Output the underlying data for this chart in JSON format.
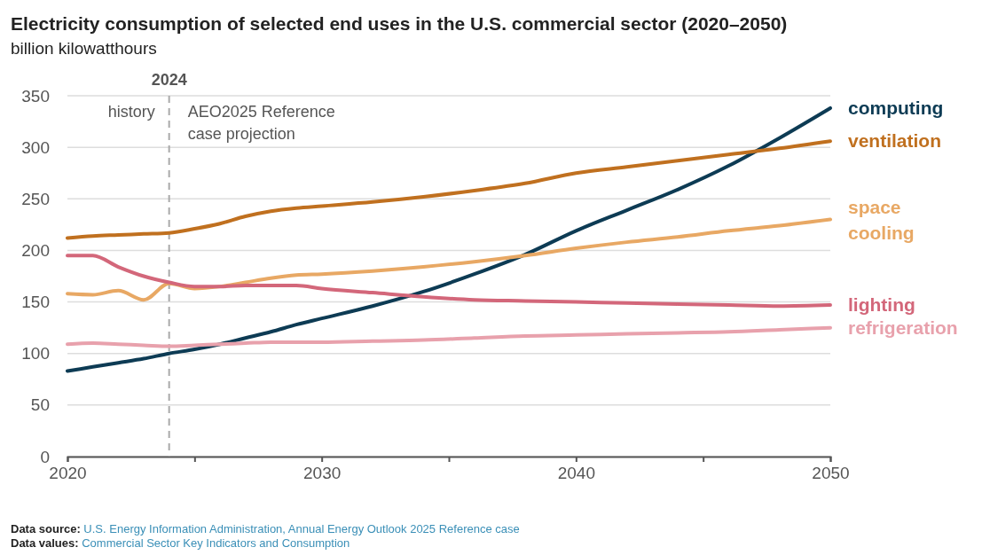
{
  "chart_data": {
    "type": "line",
    "title": "Electricity consumption of selected end uses in the U.S. commercial sector (2020–2050)",
    "subtitle": "billion kilowatthours",
    "x": [
      2020,
      2021,
      2022,
      2023,
      2024,
      2025,
      2026,
      2027,
      2028,
      2029,
      2030,
      2032,
      2034,
      2036,
      2038,
      2040,
      2042,
      2044,
      2046,
      2048,
      2050
    ],
    "series": [
      {
        "name": "computing",
        "color": "#0d3b54",
        "values": [
          83,
          87,
          91,
          95,
          100,
          104,
          109,
          115,
          121,
          128,
          134,
          146,
          160,
          177,
          196,
          219,
          239,
          259,
          282,
          309,
          338
        ]
      },
      {
        "name": "ventilation",
        "color": "#c0701f",
        "values": [
          212,
          214,
          215,
          216,
          217,
          221,
          226,
          233,
          238,
          241,
          243,
          247,
          252,
          258,
          265,
          275,
          281,
          287,
          293,
          299,
          306
        ]
      },
      {
        "name": "space cooling",
        "color": "#e8a864",
        "values": [
          158,
          157,
          161,
          152,
          168,
          163,
          165,
          169,
          173,
          176,
          177,
          180,
          184,
          189,
          195,
          202,
          208,
          213,
          219,
          224,
          230
        ]
      },
      {
        "name": "lighting",
        "color": "#d3677a",
        "values": [
          195,
          195,
          184,
          175,
          169,
          165,
          165,
          166,
          166,
          166,
          163,
          159,
          155,
          152,
          151,
          150,
          149,
          148,
          147,
          146,
          147
        ]
      },
      {
        "name": "refrigeration",
        "color": "#e8a1ac",
        "values": [
          109,
          110,
          109,
          108,
          107,
          108,
          109,
          110,
          111,
          111,
          111,
          112,
          113,
          115,
          117,
          118,
          119,
          120,
          121,
          123,
          125
        ]
      }
    ],
    "xlim": [
      2020,
      2050
    ],
    "xticks": [
      2020,
      {
        "value": 2025,
        "label": null
      },
      2030,
      {
        "value": 2035,
        "label": null
      },
      2040,
      {
        "value": 2045,
        "label": null
      },
      2050
    ],
    "ylim": [
      0,
      350
    ],
    "yticks": [
      0,
      50,
      100,
      150,
      200,
      250,
      300,
      350
    ],
    "grid": "y",
    "legend": false,
    "line_style": "solid",
    "marker": "none",
    "ref_lines": [
      {
        "axis": "x",
        "value": 2024,
        "label": "2024",
        "color": "#aaaaaa",
        "line_style": "dashed"
      }
    ],
    "annotations": [
      "history",
      "AEO2025 Reference case projection",
      "Data source: U.S. Energy Information Administration, Annual Energy Outlook 2025 Reference case",
      "Data values: Commercial Sector Key Indicators and Consumption"
    ]
  }
}
